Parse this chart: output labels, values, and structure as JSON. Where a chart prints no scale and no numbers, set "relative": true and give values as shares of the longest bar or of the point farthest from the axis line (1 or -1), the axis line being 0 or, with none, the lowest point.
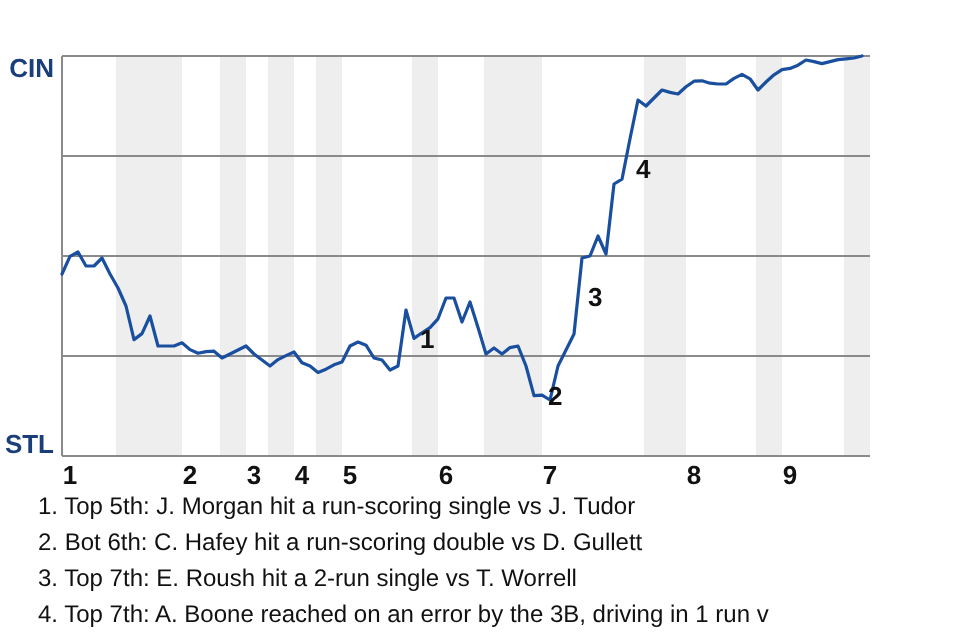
{
  "chart_data": {
    "type": "line",
    "relative": true,
    "categories": [
      null,
      "1",
      null,
      null,
      null,
      null,
      null,
      null,
      null,
      null,
      null,
      null,
      null,
      null,
      null,
      null,
      "2",
      null,
      null,
      null,
      null,
      null,
      null,
      null,
      "3",
      null,
      null,
      null,
      null,
      null,
      "4",
      null,
      null,
      null,
      null,
      null,
      "5",
      null,
      null,
      null,
      null,
      null,
      null,
      null,
      null,
      null,
      null,
      null,
      "6",
      null,
      null,
      null,
      null,
      null,
      null,
      null,
      null,
      null,
      null,
      null,
      null,
      "7",
      null,
      null,
      null,
      null,
      null,
      null,
      null,
      null,
      null,
      null,
      null,
      null,
      null,
      null,
      null,
      null,
      null,
      "8",
      null,
      null,
      null,
      null,
      null,
      null,
      null,
      null,
      null,
      null,
      null,
      "9",
      null,
      null,
      null,
      null,
      null,
      null,
      null,
      null,
      null
    ],
    "series": [
      {
        "color": "#1a4fa0",
        "values": [
          0.455,
          0.499,
          0.51,
          0.475,
          0.475,
          0.495,
          0.455,
          0.42,
          0.375,
          0.291,
          0.306,
          0.35,
          0.275,
          0.275,
          0.275,
          0.283,
          0.266,
          0.257,
          0.261,
          0.262,
          0.245,
          0.255,
          0.265,
          0.275,
          0.255,
          0.24,
          0.225,
          0.241,
          0.251,
          0.26,
          0.233,
          0.225,
          0.209,
          0.217,
          0.228,
          0.235,
          0.275,
          0.285,
          0.277,
          0.245,
          0.24,
          0.215,
          0.225,
          0.365,
          0.294,
          0.308,
          0.321,
          0.343,
          0.395,
          0.395,
          0.335,
          0.385,
          0.321,
          0.255,
          0.27,
          0.255,
          0.271,
          0.275,
          0.225,
          0.151,
          0.152,
          0.14,
          0.225,
          0.265,
          0.305,
          0.495,
          0.5,
          0.55,
          0.505,
          0.68,
          0.692,
          0.793,
          0.89,
          0.875,
          0.895,
          0.915,
          0.909,
          0.905,
          0.923,
          0.937,
          0.938,
          0.932,
          0.93,
          0.93,
          0.944,
          0.954,
          0.943,
          0.915,
          0.935,
          0.953,
          0.966,
          0.969,
          0.977,
          0.99,
          0.986,
          0.981,
          0.986,
          0.991,
          0.993,
          0.995,
          1.0
        ]
      }
    ],
    "marker": "none",
    "line_style": "solid",
    "ref_lines": [
      {
        "axis": "y",
        "value": 0.25,
        "color": "#8a8a8a"
      },
      {
        "axis": "y",
        "value": 0.5,
        "color": "#8a8a8a"
      },
      {
        "axis": "y",
        "value": 0.75,
        "color": "#8a8a8a"
      },
      {
        "axis": "y",
        "value": 1,
        "color": "#8a8a8a"
      }
    ],
    "annotations": [
      "CIN",
      "STL",
      "1",
      "2",
      "3",
      "4",
      "1. Top 5th: J. Morgan hit a run-scoring single vs J. Tudor",
      "2. Bot 6th: C. Hafey hit a run-scoring double vs D. Gullett",
      "3. Top 7th: E. Roush hit a 2-run single vs T. Worrell",
      "4. Top 7th: A. Boone reached on an error by the 3B, driving in 1 run v"
    ]
  }
}
